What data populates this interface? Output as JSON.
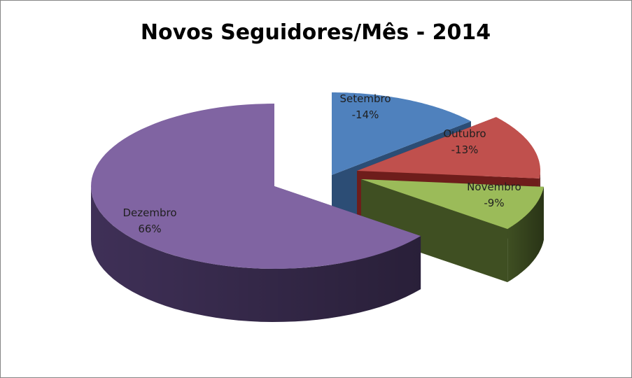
{
  "chart_data": {
    "type": "pie",
    "title": "Novos Seguidores/Mês - 2014",
    "slices": [
      {
        "name": "Setembro",
        "label": "-14%",
        "value": 14,
        "color": "#4f81bd",
        "side": "#2c4d75",
        "exploded": true
      },
      {
        "name": "Outubro",
        "label": "-13%",
        "value": 13,
        "color": "#c0504d",
        "side": "#6e1d1b",
        "exploded": true
      },
      {
        "name": "Novembro",
        "label": "-9%",
        "value": 9,
        "color": "#9bbb59",
        "side": "#3f4f22",
        "exploded": true
      },
      {
        "name": "Dezembro",
        "label": "66%",
        "value": 66,
        "color": "#8064a2",
        "side": "#3f3057",
        "exploded": false
      }
    ],
    "legend": "none",
    "style": "3d-exploded"
  }
}
